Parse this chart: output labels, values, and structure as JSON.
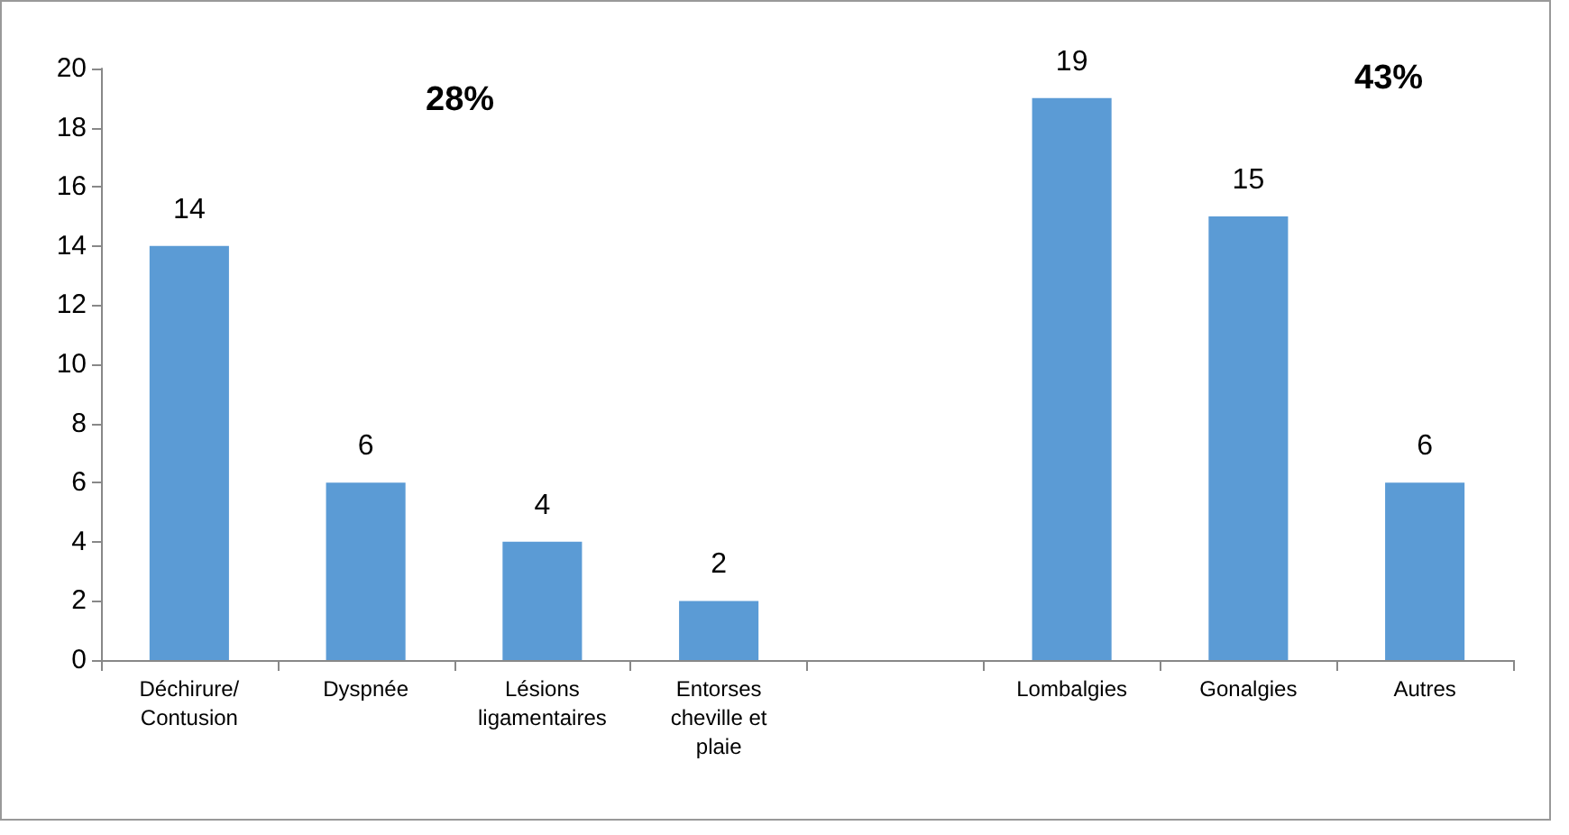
{
  "chart_data": {
    "type": "bar",
    "categories": [
      "Déchirure/\nContusion",
      "Dyspnée",
      "Lésions\nligamentaires",
      "Entorses\ncheville et\nplaie",
      null,
      "Lombalgies",
      "Gonalgies",
      "Autres"
    ],
    "values": [
      14,
      6,
      4,
      2,
      null,
      19,
      15,
      6
    ],
    "color": "#5b9bd5",
    "ylim": [
      0,
      20
    ],
    "yticks": [
      0,
      2,
      4,
      6,
      8,
      10,
      12,
      14,
      16,
      18,
      20
    ],
    "data_labels": true,
    "grid": false,
    "annotations": [
      "28%",
      "43%"
    ]
  }
}
